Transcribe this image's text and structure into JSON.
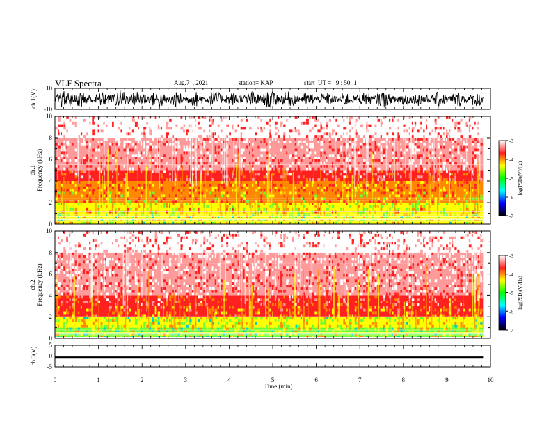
{
  "header": {
    "title": "VLF Spectra",
    "date": "Aug.7  , 2021",
    "station": "station= KAP",
    "start": "start  UT =   9 : 50: 1"
  },
  "colorbar": {
    "label": "log(PSD)(V²/Hz)",
    "ticks": [
      "-3",
      "-4",
      "-5",
      "-6",
      "-7"
    ],
    "colors": [
      "#ffffff",
      "#ff2020",
      "#ffff00",
      "#00ff00",
      "#00ffff",
      "#0000ff",
      "#000000"
    ]
  },
  "chart_data": [
    {
      "type": "line",
      "panel": "ch1-waveform",
      "ylabel": "ch.1(V)",
      "ylim": [
        -10,
        10
      ],
      "yticks": [
        "10",
        "-10"
      ],
      "x": [
        0,
        0.5,
        1,
        1.5,
        2,
        2.5,
        3,
        3.5,
        4,
        4.5,
        5,
        5.5,
        6,
        6.5,
        7,
        7.5,
        8,
        8.5,
        9,
        9.5,
        9.83
      ],
      "y_min": [
        -8,
        -9,
        -7,
        -9,
        -8,
        -9,
        -7,
        -8,
        -6,
        -8,
        -9,
        -7,
        -6,
        -7,
        -6,
        -8,
        -7,
        -7,
        -8,
        -7,
        -7
      ],
      "y_max": [
        7,
        8,
        6,
        9,
        8,
        7,
        6,
        8,
        6,
        7,
        8,
        7,
        6,
        6,
        6,
        7,
        6,
        6,
        7,
        6,
        6
      ],
      "color": "#000000"
    },
    {
      "type": "heatmap",
      "panel": "ch1-spectrogram",
      "ylabel": "ch.1",
      "ylabel2": "Frequency (kHz)",
      "ylim": [
        0,
        10
      ],
      "yticks": [
        "0",
        "2",
        "4",
        "6",
        "8",
        "10"
      ],
      "xlim": [
        0,
        10
      ],
      "data_end_min": 9.83,
      "value_range": [
        -7,
        -3
      ],
      "band_freq_khz": [
        0.5,
        1.5,
        2.5,
        3.5,
        4.5,
        5.5,
        6.5,
        7.5,
        8.5,
        9.5
      ],
      "band_log_psd": [
        -4.6,
        -4.5,
        -4.3,
        -4.1,
        -3.7,
        -3.5,
        -3.4,
        -3.3,
        -3.2,
        -3.2
      ],
      "lines_khz": [
        1.2,
        2.2,
        2.4,
        5.5
      ]
    },
    {
      "type": "heatmap",
      "panel": "ch2-spectrogram",
      "ylabel": "ch.2",
      "ylabel2": "Frequency (kHz)",
      "ylim": [
        0,
        10
      ],
      "yticks": [
        "0",
        "2",
        "4",
        "6",
        "8",
        "10"
      ],
      "xlim": [
        0,
        10
      ],
      "data_end_min": 9.83,
      "value_range": [
        -7,
        -3
      ],
      "band_freq_khz": [
        0.5,
        1.5,
        2.5,
        3.5,
        4.5,
        5.5,
        6.5,
        7.5,
        8.5,
        9.5
      ],
      "band_log_psd": [
        -4.7,
        -4.6,
        -4.0,
        -3.7,
        -3.5,
        -3.4,
        -3.3,
        -3.3,
        -3.2,
        -3.2
      ],
      "lines_khz": [
        0.5,
        2.0
      ]
    },
    {
      "type": "line",
      "panel": "ch3-waveform",
      "ylabel": "ch.3(V)",
      "ylim": [
        -5,
        5
      ],
      "yticks": [
        "5",
        "0",
        "-5"
      ],
      "xlabel": "Time (min)",
      "xticks": [
        "0",
        "1",
        "2",
        "3",
        "4",
        "5",
        "6",
        "7",
        "8",
        "9",
        "10"
      ],
      "x": [
        0,
        9.83
      ],
      "y_min": [
        -1.2,
        -1.2
      ],
      "y_max": [
        -0.2,
        -0.2
      ],
      "color": "#000000"
    }
  ]
}
